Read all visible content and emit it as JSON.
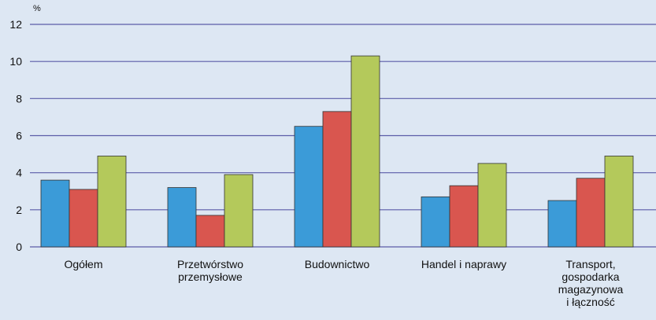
{
  "chart_data": {
    "type": "bar",
    "y_label": "%",
    "categories": [
      "Ogółem",
      "Przetwórstwo\nprzemysłowe",
      "Budownictwo",
      "Handel i naprawy",
      "Transport,\ngospodarka\nmagazynowa\ni łączność"
    ],
    "series": [
      {
        "color": "#3b9bd8",
        "values": [
          3.6,
          3.2,
          6.5,
          2.7,
          2.5
        ]
      },
      {
        "color": "#d9564f",
        "values": [
          3.1,
          1.7,
          7.3,
          3.3,
          3.7
        ]
      },
      {
        "color": "#b4c95b",
        "values": [
          4.9,
          3.9,
          10.3,
          4.5,
          4.9
        ]
      }
    ],
    "ylim": [
      0,
      12
    ],
    "yticks": [
      0,
      2,
      4,
      6,
      8,
      10,
      12
    ],
    "grid": true,
    "grid_color": "#5b5ca8"
  }
}
